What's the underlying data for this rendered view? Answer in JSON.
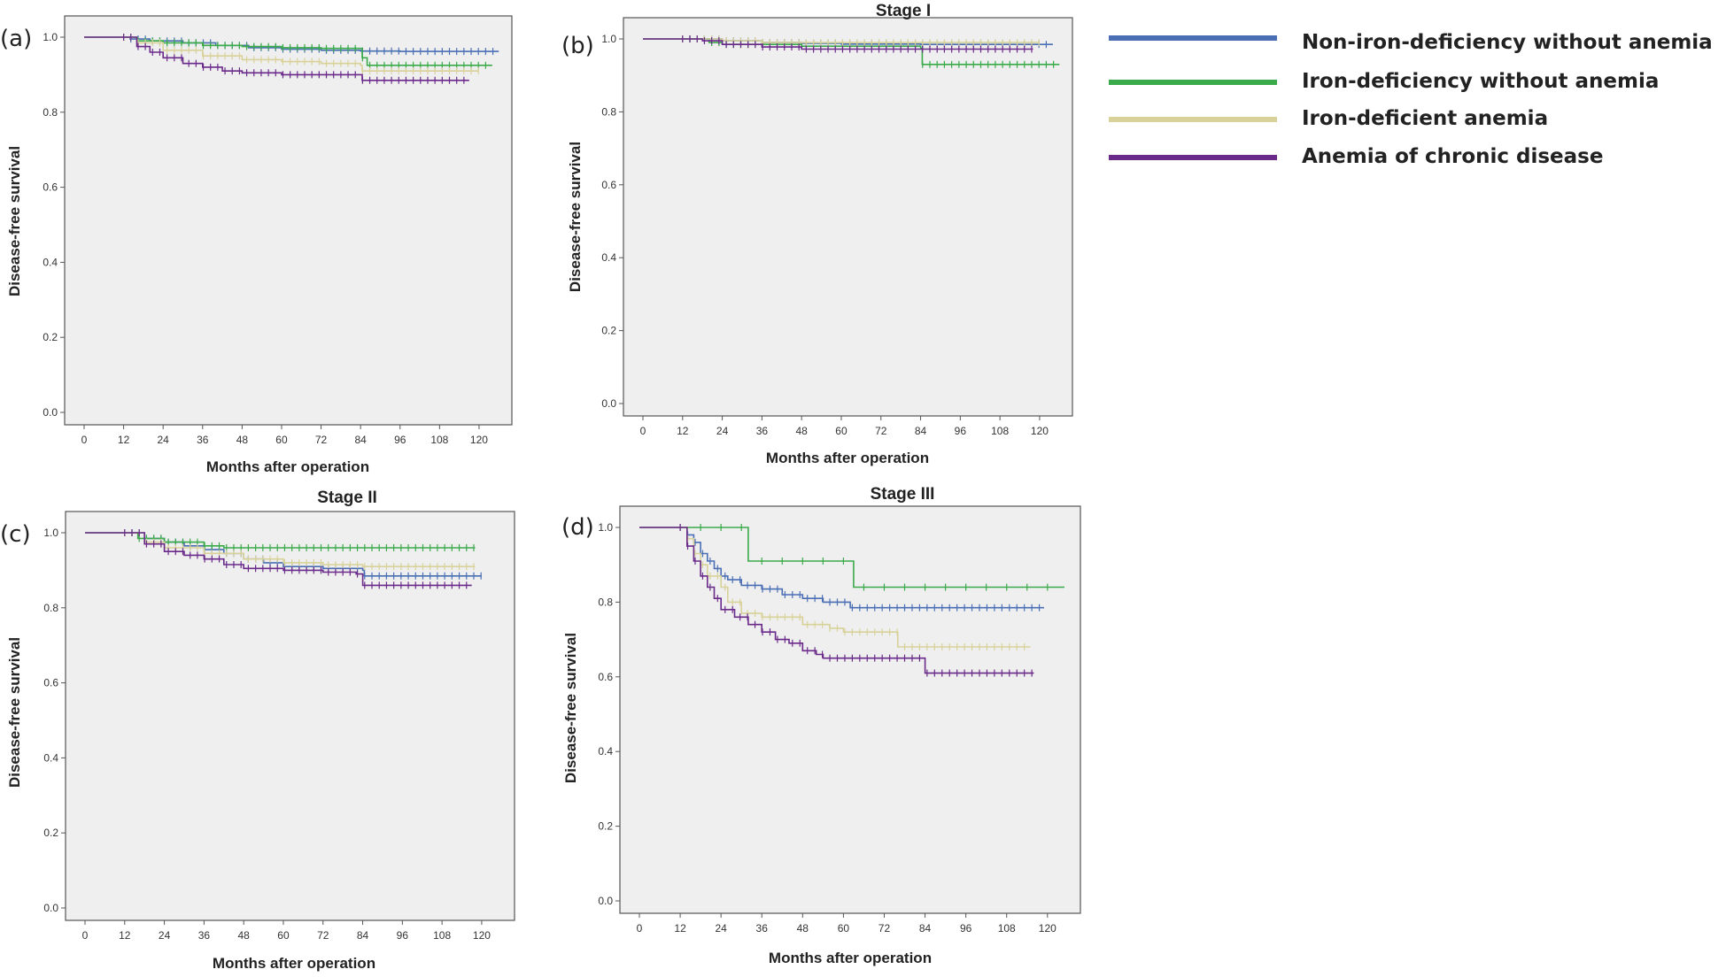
{
  "legend": [
    {
      "label": "Non-iron-deficiency without anemia",
      "color": "#4a6fb5"
    },
    {
      "label": "Iron-deficiency without anemia",
      "color": "#3aaa4a"
    },
    {
      "label": "Iron-deficient anemia",
      "color": "#d8d29a"
    },
    {
      "label": "Anemia of chronic disease",
      "color": "#6a2a8a"
    }
  ],
  "chart_data": [
    {
      "type": "line",
      "panel": "(a)",
      "title": "",
      "xlabel": "Months after operation",
      "ylabel": "Disease-free survival",
      "xlim": [
        0,
        120
      ],
      "ylim": [
        0,
        1
      ],
      "xticks": [
        0,
        12,
        24,
        36,
        48,
        60,
        72,
        84,
        96,
        108,
        120
      ],
      "yticks": [
        0.0,
        0.2,
        0.4,
        0.6,
        0.8,
        1.0
      ],
      "grid": false,
      "series": [
        {
          "name": "Non-iron-deficiency without anemia",
          "color": "#4a6fb5",
          "points": [
            [
              0,
              1
            ],
            [
              10,
              1
            ],
            [
              14,
              0.995
            ],
            [
              20,
              0.99
            ],
            [
              30,
              0.985
            ],
            [
              40,
              0.978
            ],
            [
              50,
              0.972
            ],
            [
              60,
              0.968
            ],
            [
              72,
              0.965
            ],
            [
              84,
              0.963
            ],
            [
              96,
              0.962
            ],
            [
              108,
              0.962
            ],
            [
              126,
              0.962
            ]
          ]
        },
        {
          "name": "Iron-deficiency without anemia",
          "color": "#3aaa4a",
          "points": [
            [
              0,
              1
            ],
            [
              12,
              1
            ],
            [
              16,
              0.99
            ],
            [
              24,
              0.985
            ],
            [
              36,
              0.978
            ],
            [
              48,
              0.975
            ],
            [
              60,
              0.972
            ],
            [
              72,
              0.97
            ],
            [
              84,
              0.97
            ],
            [
              84.5,
              0.945
            ],
            [
              86,
              0.925
            ],
            [
              124,
              0.925
            ]
          ]
        },
        {
          "name": "Iron-deficient anemia",
          "color": "#d8d29a",
          "points": [
            [
              0,
              1
            ],
            [
              12,
              1
            ],
            [
              16,
              0.985
            ],
            [
              24,
              0.965
            ],
            [
              36,
              0.95
            ],
            [
              48,
              0.94
            ],
            [
              60,
              0.935
            ],
            [
              72,
              0.93
            ],
            [
              84,
              0.925
            ],
            [
              84.5,
              0.91
            ],
            [
              108,
              0.91
            ],
            [
              120,
              0.91
            ]
          ]
        },
        {
          "name": "Anemia of chronic disease",
          "color": "#6a2a8a",
          "points": [
            [
              0,
              1
            ],
            [
              12,
              1
            ],
            [
              16,
              0.975
            ],
            [
              20,
              0.96
            ],
            [
              24,
              0.945
            ],
            [
              30,
              0.93
            ],
            [
              36,
              0.92
            ],
            [
              42,
              0.91
            ],
            [
              48,
              0.905
            ],
            [
              60,
              0.9
            ],
            [
              72,
              0.9
            ],
            [
              84,
              0.9
            ],
            [
              84.5,
              0.885
            ],
            [
              110,
              0.885
            ],
            [
              117,
              0.885
            ]
          ]
        }
      ]
    },
    {
      "type": "line",
      "panel": "(b)",
      "title": "Stage I",
      "xlabel": "Months after operation",
      "ylabel": "Disease-free survival",
      "xlim": [
        0,
        120
      ],
      "ylim": [
        0,
        1
      ],
      "xticks": [
        0,
        12,
        24,
        36,
        48,
        60,
        72,
        84,
        96,
        108,
        120
      ],
      "yticks": [
        0.0,
        0.2,
        0.4,
        0.6,
        0.8,
        1.0
      ],
      "grid": false,
      "series": [
        {
          "name": "Non-iron-deficiency without anemia",
          "color": "#4a6fb5",
          "points": [
            [
              0,
              1
            ],
            [
              12,
              1
            ],
            [
              24,
              0.995
            ],
            [
              36,
              0.99
            ],
            [
              48,
              0.988
            ],
            [
              60,
              0.986
            ],
            [
              84,
              0.985
            ],
            [
              108,
              0.985
            ],
            [
              124,
              0.985
            ]
          ]
        },
        {
          "name": "Iron-deficiency without anemia",
          "color": "#3aaa4a",
          "points": [
            [
              0,
              1
            ],
            [
              16,
              1
            ],
            [
              20,
              0.99
            ],
            [
              24,
              0.985
            ],
            [
              48,
              0.98
            ],
            [
              84,
              0.975
            ],
            [
              84.5,
              0.93
            ],
            [
              126,
              0.93
            ]
          ]
        },
        {
          "name": "Iron-deficient anemia",
          "color": "#d8d29a",
          "points": [
            [
              0,
              1
            ],
            [
              12,
              1
            ],
            [
              24,
              0.995
            ],
            [
              36,
              0.99
            ],
            [
              60,
              0.99
            ],
            [
              84,
              0.99
            ],
            [
              108,
              0.99
            ],
            [
              120,
              0.99
            ]
          ]
        },
        {
          "name": "Anemia of chronic disease",
          "color": "#6a2a8a",
          "points": [
            [
              0,
              1
            ],
            [
              12,
              1
            ],
            [
              18,
              0.995
            ],
            [
              24,
              0.985
            ],
            [
              36,
              0.978
            ],
            [
              48,
              0.972
            ],
            [
              84,
              0.972
            ],
            [
              108,
              0.972
            ],
            [
              118,
              0.972
            ]
          ]
        }
      ]
    },
    {
      "type": "line",
      "panel": "(c)",
      "title": "Stage II",
      "xlabel": "Months after operation",
      "ylabel": "Disease-free survival",
      "xlim": [
        0,
        120
      ],
      "ylim": [
        0,
        1
      ],
      "xticks": [
        0,
        12,
        24,
        36,
        48,
        60,
        72,
        84,
        96,
        108,
        120
      ],
      "yticks": [
        0.0,
        0.2,
        0.4,
        0.6,
        0.8,
        1.0
      ],
      "grid": false,
      "series": [
        {
          "name": "Non-iron-deficiency without anemia",
          "color": "#4a6fb5",
          "points": [
            [
              0,
              1
            ],
            [
              12,
              1
            ],
            [
              18,
              0.985
            ],
            [
              24,
              0.975
            ],
            [
              30,
              0.965
            ],
            [
              36,
              0.955
            ],
            [
              42,
              0.945
            ],
            [
              48,
              0.93
            ],
            [
              54,
              0.92
            ],
            [
              60,
              0.91
            ],
            [
              72,
              0.905
            ],
            [
              84,
              0.9
            ],
            [
              84.5,
              0.885
            ],
            [
              96,
              0.885
            ],
            [
              108,
              0.885
            ],
            [
              120,
              0.885
            ]
          ]
        },
        {
          "name": "Iron-deficiency without anemia",
          "color": "#3aaa4a",
          "points": [
            [
              0,
              1
            ],
            [
              12,
              1
            ],
            [
              16,
              0.985
            ],
            [
              24,
              0.975
            ],
            [
              36,
              0.965
            ],
            [
              42,
              0.96
            ],
            [
              48,
              0.96
            ],
            [
              60,
              0.96
            ],
            [
              84,
              0.96
            ],
            [
              108,
              0.96
            ],
            [
              118,
              0.96
            ]
          ]
        },
        {
          "name": "Iron-deficient anemia",
          "color": "#d8d29a",
          "points": [
            [
              0,
              1
            ],
            [
              12,
              1
            ],
            [
              18,
              0.975
            ],
            [
              24,
              0.96
            ],
            [
              36,
              0.945
            ],
            [
              48,
              0.93
            ],
            [
              60,
              0.92
            ],
            [
              72,
              0.915
            ],
            [
              84,
              0.91
            ],
            [
              96,
              0.91
            ],
            [
              108,
              0.91
            ],
            [
              118,
              0.91
            ]
          ]
        },
        {
          "name": "Anemia of chronic disease",
          "color": "#6a2a8a",
          "points": [
            [
              0,
              1
            ],
            [
              12,
              1
            ],
            [
              18,
              0.97
            ],
            [
              24,
              0.95
            ],
            [
              30,
              0.94
            ],
            [
              36,
              0.93
            ],
            [
              42,
              0.915
            ],
            [
              48,
              0.905
            ],
            [
              60,
              0.9
            ],
            [
              72,
              0.895
            ],
            [
              82,
              0.89
            ],
            [
              84,
              0.86
            ],
            [
              108,
              0.86
            ],
            [
              117,
              0.86
            ]
          ]
        }
      ]
    },
    {
      "type": "line",
      "panel": "(d)",
      "title": "Stage III",
      "xlabel": "Months after operation",
      "ylabel": "Disease-free survival",
      "xlim": [
        0,
        120
      ],
      "ylim": [
        0,
        1
      ],
      "xticks": [
        0,
        12,
        24,
        36,
        48,
        60,
        72,
        84,
        96,
        108,
        120
      ],
      "yticks": [
        0.0,
        0.2,
        0.4,
        0.6,
        0.8,
        1.0
      ],
      "grid": false,
      "series": [
        {
          "name": "Non-iron-deficiency without anemia",
          "color": "#4a6fb5",
          "points": [
            [
              0,
              1
            ],
            [
              12,
              1
            ],
            [
              14,
              0.98
            ],
            [
              16,
              0.96
            ],
            [
              18,
              0.93
            ],
            [
              20,
              0.91
            ],
            [
              22,
              0.89
            ],
            [
              24,
              0.87
            ],
            [
              26,
              0.86
            ],
            [
              30,
              0.845
            ],
            [
              36,
              0.835
            ],
            [
              42,
              0.82
            ],
            [
              48,
              0.81
            ],
            [
              54,
              0.8
            ],
            [
              60,
              0.8
            ],
            [
              62,
              0.785
            ],
            [
              72,
              0.785
            ],
            [
              84,
              0.785
            ],
            [
              96,
              0.785
            ],
            [
              108,
              0.785
            ],
            [
              119,
              0.785
            ]
          ]
        },
        {
          "name": "Iron-deficiency without anemia",
          "color": "#3aaa4a",
          "points": [
            [
              0,
              1
            ],
            [
              30,
              1
            ],
            [
              32,
              0.91
            ],
            [
              36,
              0.91
            ],
            [
              48,
              0.91
            ],
            [
              60,
              0.91
            ],
            [
              63,
              0.84
            ],
            [
              72,
              0.84
            ],
            [
              84,
              0.84
            ],
            [
              96,
              0.84
            ],
            [
              108,
              0.84
            ],
            [
              125,
              0.84
            ]
          ]
        },
        {
          "name": "Iron-deficient anemia",
          "color": "#d8d29a",
          "points": [
            [
              0,
              1
            ],
            [
              12,
              1
            ],
            [
              14,
              0.97
            ],
            [
              16,
              0.93
            ],
            [
              18,
              0.9
            ],
            [
              20,
              0.87
            ],
            [
              24,
              0.84
            ],
            [
              26,
              0.8
            ],
            [
              30,
              0.77
            ],
            [
              36,
              0.76
            ],
            [
              48,
              0.74
            ],
            [
              56,
              0.73
            ],
            [
              60,
              0.72
            ],
            [
              72,
              0.72
            ],
            [
              76,
              0.68
            ],
            [
              84,
              0.68
            ],
            [
              96,
              0.68
            ],
            [
              108,
              0.68
            ],
            [
              115,
              0.68
            ]
          ]
        },
        {
          "name": "Anemia of chronic disease",
          "color": "#6a2a8a",
          "points": [
            [
              0,
              1
            ],
            [
              12,
              1
            ],
            [
              14,
              0.95
            ],
            [
              16,
              0.91
            ],
            [
              18,
              0.87
            ],
            [
              20,
              0.84
            ],
            [
              22,
              0.81
            ],
            [
              24,
              0.78
            ],
            [
              28,
              0.76
            ],
            [
              32,
              0.74
            ],
            [
              36,
              0.72
            ],
            [
              40,
              0.7
            ],
            [
              44,
              0.69
            ],
            [
              48,
              0.67
            ],
            [
              52,
              0.66
            ],
            [
              54,
              0.65
            ],
            [
              60,
              0.65
            ],
            [
              72,
              0.65
            ],
            [
              82,
              0.65
            ],
            [
              84,
              0.61
            ],
            [
              96,
              0.61
            ],
            [
              108,
              0.61
            ],
            [
              116,
              0.61
            ]
          ]
        }
      ]
    }
  ]
}
